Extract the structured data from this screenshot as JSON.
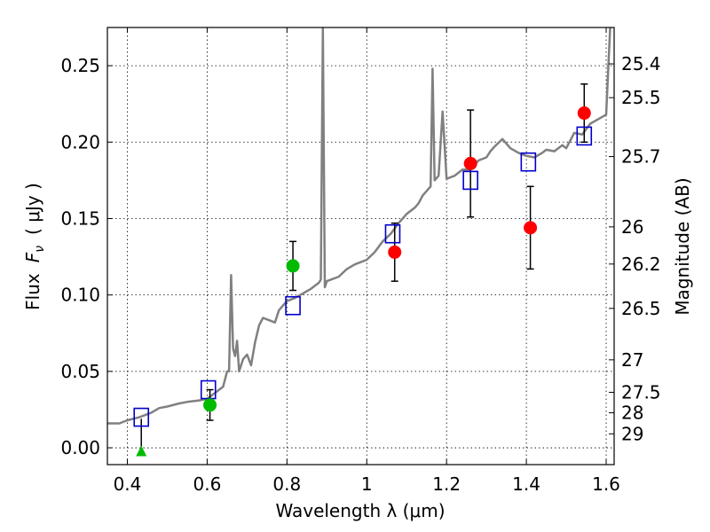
{
  "chart_data": {
    "type": "scatter",
    "xlabel": "Wavelength  λ (μm)",
    "ylabel_left_text": "Flux",
    "ylabel_left_symbol": "F",
    "ylabel_left_subscript": "ν",
    "ylabel_left_unit": "( μJy )",
    "ylabel_right": "Magnitude (AB)",
    "xlim": [
      0.35,
      1.62
    ],
    "ylim": [
      -0.011,
      0.275
    ],
    "x_ticks": [
      0.4,
      0.6,
      0.8,
      1.0,
      1.2,
      1.4,
      1.6
    ],
    "x_tick_labels": [
      "0.4",
      "0.6",
      "0.8",
      "1",
      "1.2",
      "1.4",
      "1.6"
    ],
    "y_ticks": [
      0.0,
      0.05,
      0.1,
      0.15,
      0.2,
      0.25
    ],
    "y_tick_labels": [
      "0.00",
      "0.05",
      "0.10",
      "0.15",
      "0.20",
      "0.25"
    ],
    "right_ticks": [
      25.4,
      25.5,
      25.7,
      26.0,
      26.2,
      26.5,
      27.0,
      27.5,
      28.0,
      29.0
    ],
    "right_tick_labels": [
      "25.4",
      "25.5",
      "25.7",
      "26",
      "26.2",
      "26.5",
      "27",
      "27.5",
      "28",
      "29"
    ],
    "grid": true,
    "colors": {
      "spectrum": "#808080",
      "model_square": "#0000cc",
      "red_point": "#ff0000",
      "green_point": "#00bb00",
      "errorbar": "#000000"
    },
    "spectrum": {
      "x": [
        0.35,
        0.38,
        0.4,
        0.43,
        0.46,
        0.48,
        0.5,
        0.53,
        0.55,
        0.58,
        0.6,
        0.62,
        0.64,
        0.65,
        0.655,
        0.66,
        0.665,
        0.67,
        0.675,
        0.68,
        0.69,
        0.7,
        0.71,
        0.72,
        0.73,
        0.74,
        0.75,
        0.77,
        0.78,
        0.79,
        0.8,
        0.82,
        0.84,
        0.86,
        0.88,
        0.885,
        0.89,
        0.895,
        0.9,
        0.93,
        0.95,
        0.97,
        1.0,
        1.02,
        1.04,
        1.06,
        1.08,
        1.1,
        1.12,
        1.13,
        1.14,
        1.15,
        1.16,
        1.165,
        1.17,
        1.18,
        1.19,
        1.2,
        1.22,
        1.24,
        1.26,
        1.28,
        1.3,
        1.31,
        1.32,
        1.34,
        1.36,
        1.38,
        1.4,
        1.42,
        1.44,
        1.45,
        1.47,
        1.49,
        1.5,
        1.52,
        1.54,
        1.56,
        1.58,
        1.6,
        1.61,
        1.62
      ],
      "y": [
        0.016,
        0.016,
        0.018,
        0.02,
        0.023,
        0.026,
        0.027,
        0.029,
        0.03,
        0.031,
        0.032,
        0.036,
        0.04,
        0.05,
        0.05,
        0.113,
        0.065,
        0.06,
        0.07,
        0.05,
        0.058,
        0.061,
        0.054,
        0.069,
        0.08,
        0.085,
        0.084,
        0.082,
        0.09,
        0.093,
        0.096,
        0.098,
        0.101,
        0.104,
        0.108,
        0.11,
        0.275,
        0.105,
        0.109,
        0.112,
        0.117,
        0.12,
        0.123,
        0.128,
        0.135,
        0.14,
        0.147,
        0.153,
        0.157,
        0.16,
        0.165,
        0.168,
        0.171,
        0.248,
        0.175,
        0.178,
        0.22,
        0.176,
        0.178,
        0.182,
        0.182,
        0.188,
        0.19,
        0.194,
        0.197,
        0.202,
        0.196,
        0.193,
        0.191,
        0.19,
        0.193,
        0.195,
        0.194,
        0.198,
        0.196,
        0.206,
        0.205,
        0.212,
        0.215,
        0.218,
        0.275,
        0.28
      ]
    },
    "model_squares": {
      "x": [
        0.435,
        0.603,
        0.815,
        1.065,
        1.26,
        1.405,
        1.545
      ],
      "y": [
        0.02,
        0.038,
        0.093,
        0.14,
        0.175,
        0.187,
        0.204
      ]
    },
    "red_points": {
      "x": [
        1.07,
        1.26,
        1.41,
        1.545
      ],
      "y": [
        0.128,
        0.186,
        0.144,
        0.219
      ],
      "yerr": [
        0.019,
        0.035,
        0.027,
        0.019
      ]
    },
    "green_points": {
      "x": [
        0.607,
        0.815
      ],
      "y": [
        0.028,
        0.119
      ],
      "yerr": [
        0.01,
        0.016
      ]
    },
    "green_upper_limit": {
      "x": 0.435,
      "y": -0.002,
      "top": 0.019
    }
  }
}
